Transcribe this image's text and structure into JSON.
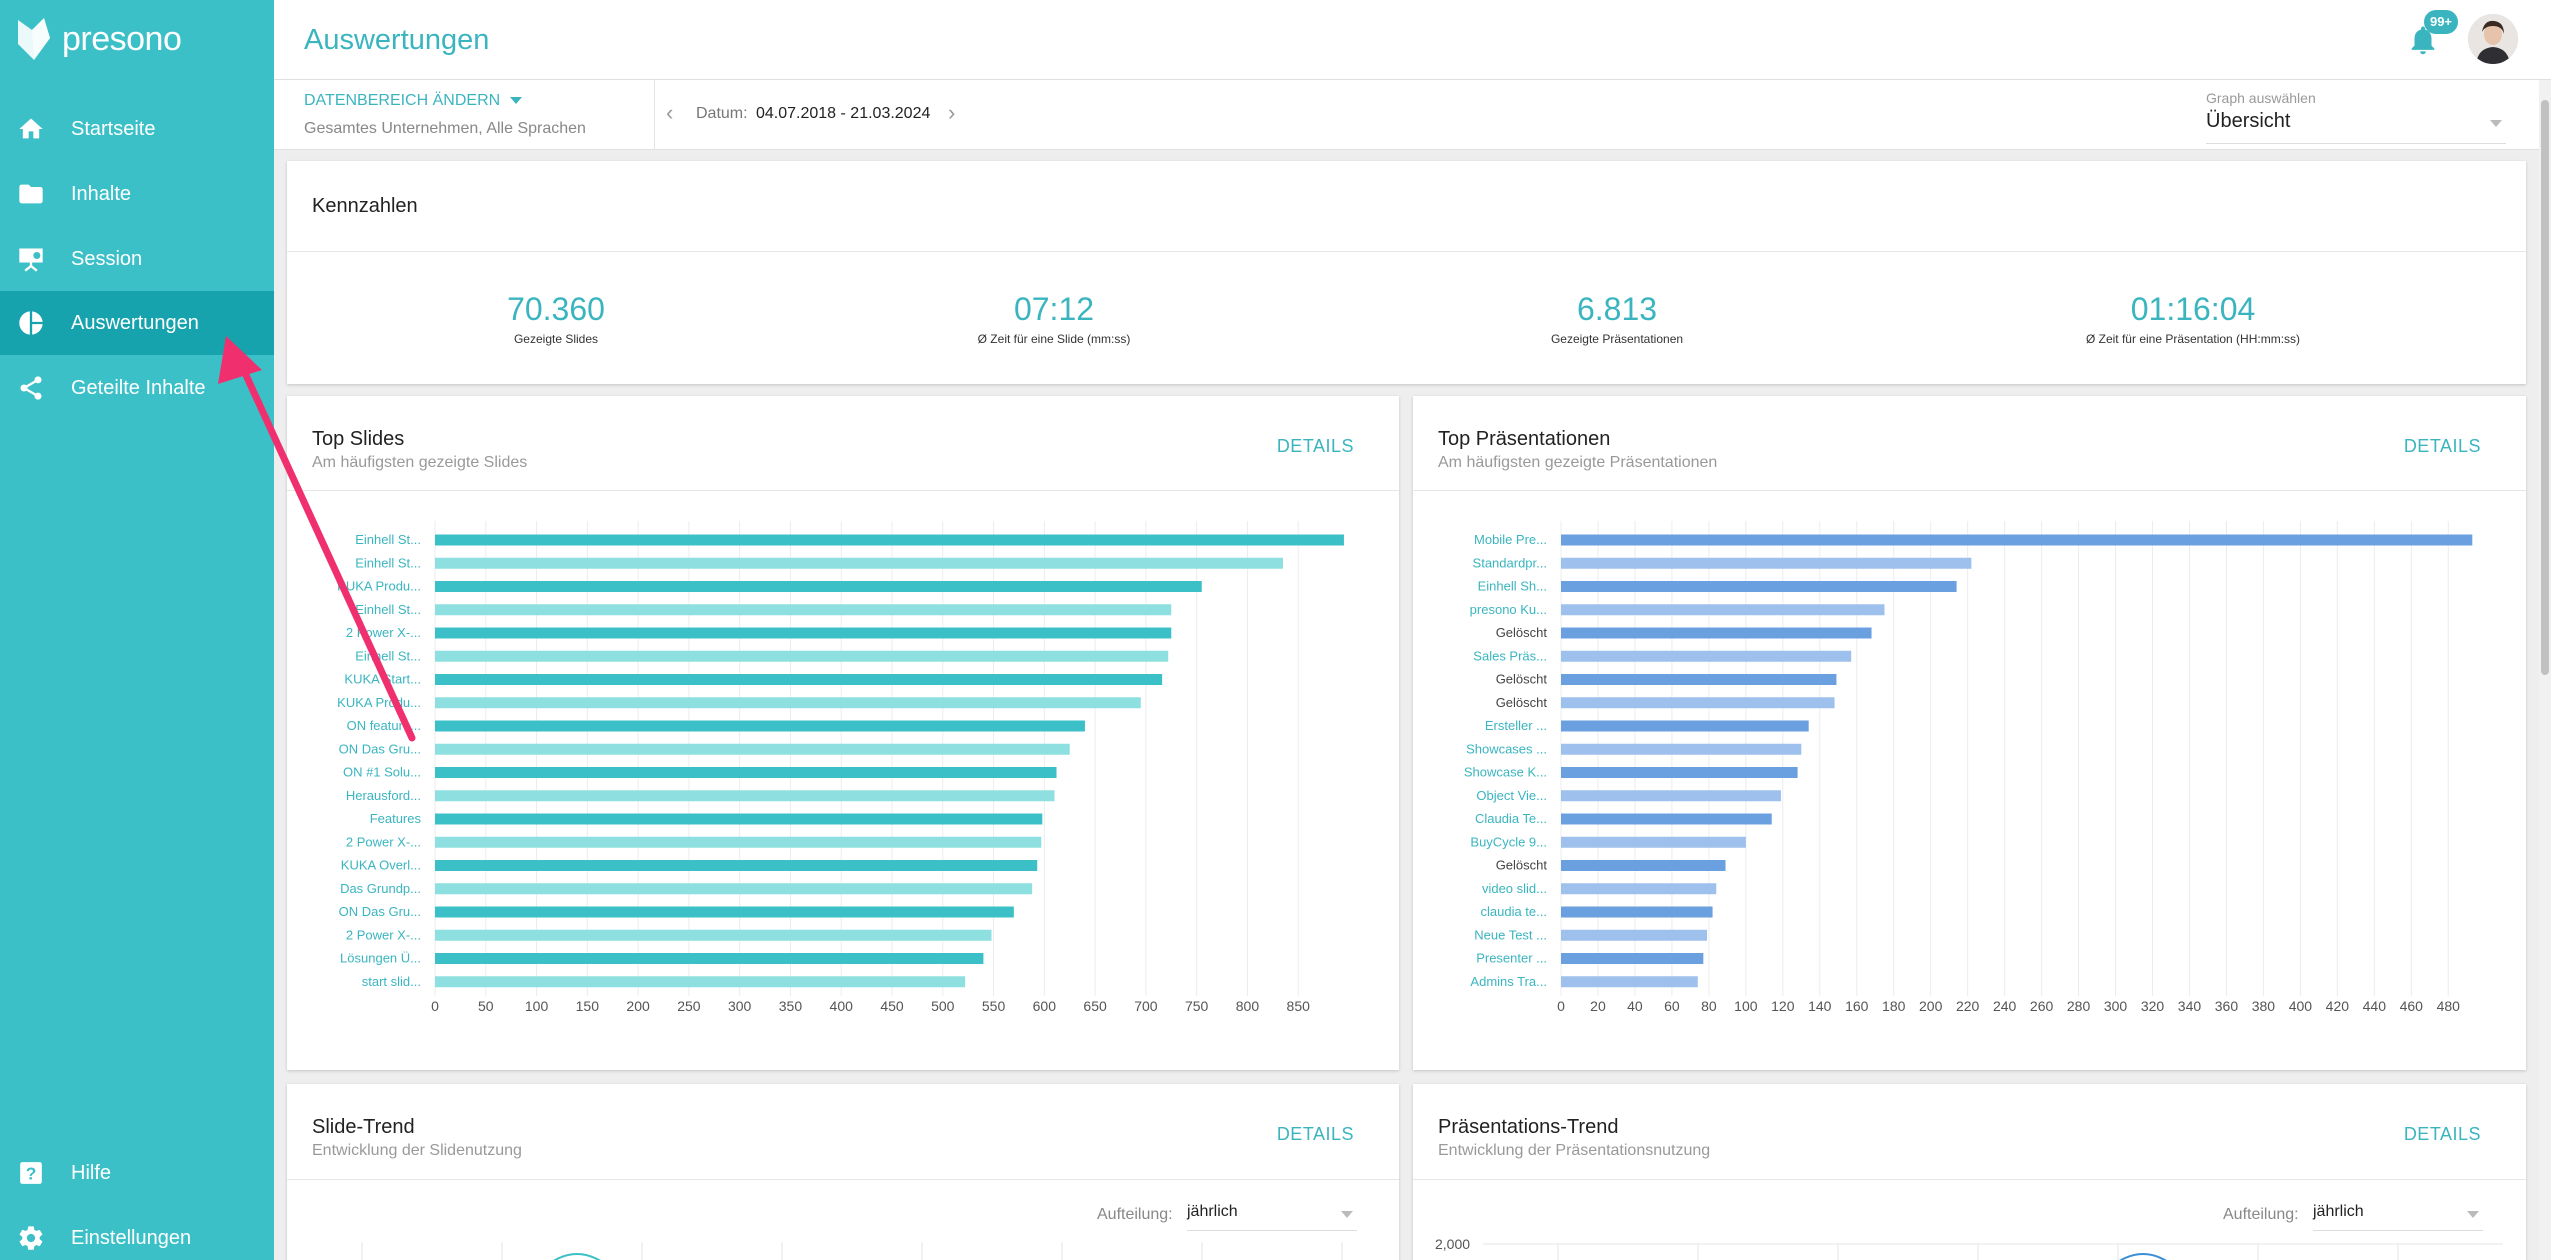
{
  "app": {
    "brand": "presono",
    "page_title": "Auswertungen",
    "notification_badge": "99+"
  },
  "sidebar": {
    "items": [
      {
        "label": "Startseite",
        "icon": "home-icon",
        "active": false
      },
      {
        "label": "Inhalte",
        "icon": "folder-icon",
        "active": false
      },
      {
        "label": "Session",
        "icon": "presentation-icon",
        "active": false
      },
      {
        "label": "Auswertungen",
        "icon": "pie-chart-icon",
        "active": true
      },
      {
        "label": "Geteilte Inhalte",
        "icon": "share-icon",
        "active": false
      }
    ],
    "bottom": [
      {
        "label": "Hilfe",
        "icon": "help-icon"
      },
      {
        "label": "Einstellungen",
        "icon": "gear-icon"
      }
    ]
  },
  "filter": {
    "range_button": "DATENBEREICH ÄNDERN",
    "range_sub": "Gesamtes Unternehmen, Alle Sprachen",
    "date_label": "Datum:",
    "date_value": "04.07.2018 - 21.03.2024",
    "graph_label": "Graph auswählen",
    "graph_value": "Übersicht"
  },
  "kennzahlen": {
    "title": "Kennzahlen",
    "items": [
      {
        "value": "70.360",
        "label": "Gezeigte Slides"
      },
      {
        "value": "07:12",
        "label": "Ø Zeit für eine Slide (mm:ss)"
      },
      {
        "value": "6.813",
        "label": "Gezeigte Präsentationen"
      },
      {
        "value": "01:16:04",
        "label": "Ø Zeit für eine Präsentation (HH:mm:ss)"
      }
    ]
  },
  "top_slides": {
    "title": "Top Slides",
    "subtitle": "Am häufigsten gezeigte Slides",
    "details": "DETAILS"
  },
  "top_presentations": {
    "title": "Top Präsentationen",
    "subtitle": "Am häufigsten gezeigte Präsentationen",
    "details": "DETAILS"
  },
  "slide_trend": {
    "title": "Slide-Trend",
    "subtitle": "Entwicklung der Slidenutzung",
    "details": "DETAILS",
    "split_label": "Aufteilung:",
    "split_value": "jährlich"
  },
  "presentation_trend": {
    "title": "Präsentations-Trend",
    "subtitle": "Entwicklung der Präsentationsnutzung",
    "details": "DETAILS",
    "split_label": "Aufteilung:",
    "split_value": "jährlich",
    "y_top_label": "2,000"
  },
  "colors": {
    "accent": "#3ab5c0",
    "sidebar": "#3cc0c8",
    "sidebar_active": "#17a3ad",
    "slide_bar_dark": "#3cc0c8",
    "slide_bar_light": "#8ee0e0",
    "pres_bar_dark": "#6a9fe0",
    "pres_bar_light": "#9ec0ec",
    "annotation_arrow": "#f0306e"
  },
  "chart_data": [
    {
      "type": "bar",
      "orientation": "horizontal",
      "title": "Top Slides",
      "categories": [
        "Einhell St...",
        "Einhell St...",
        "KUKA Produ...",
        "Einhell St...",
        "2 Power X-...",
        "Einhell St...",
        "KUKA Start...",
        "KUKA Produ...",
        "ON feature...",
        "ON Das Gru...",
        "ON #1 Solu...",
        "Herausford...",
        "Features",
        "2 Power X-...",
        "KUKA Overl...",
        "Das Grundp...",
        "ON Das Gru...",
        "2 Power X-...",
        "Lösungen Ü...",
        "start slid..."
      ],
      "values": [
        895,
        835,
        755,
        725,
        725,
        722,
        716,
        695,
        640,
        625,
        612,
        610,
        598,
        597,
        593,
        588,
        570,
        548,
        540,
        522
      ],
      "xlim": [
        0,
        900
      ],
      "xticks": [
        0,
        50,
        100,
        150,
        200,
        250,
        300,
        350,
        400,
        450,
        500,
        550,
        600,
        650,
        700,
        750,
        800,
        850
      ]
    },
    {
      "type": "bar",
      "orientation": "horizontal",
      "title": "Top Präsentationen",
      "categories": [
        "Mobile Pre...",
        "Standardpr...",
        "Einhell Sh...",
        "presono Ku...",
        "Gelöscht",
        "Sales Präs...",
        "Gelöscht",
        "Gelöscht",
        "Ersteller ...",
        "Showcases ...",
        "Showcase K...",
        "Object Vie...",
        "Claudia Te...",
        "BuyCycle 9...",
        "Gelöscht",
        "video slid...",
        "claudia te...",
        "Neue Test ...",
        "Presenter ...",
        "Admins Tra..."
      ],
      "values": [
        493,
        222,
        214,
        175,
        168,
        157,
        149,
        148,
        134,
        130,
        128,
        119,
        114,
        100,
        89,
        84,
        82,
        79,
        77,
        74
      ],
      "xlim": [
        0,
        495
      ],
      "xticks": [
        0,
        20,
        40,
        60,
        80,
        100,
        120,
        140,
        160,
        180,
        200,
        220,
        240,
        260,
        280,
        300,
        320,
        340,
        360,
        380,
        400,
        420,
        440,
        460,
        480
      ]
    }
  ]
}
